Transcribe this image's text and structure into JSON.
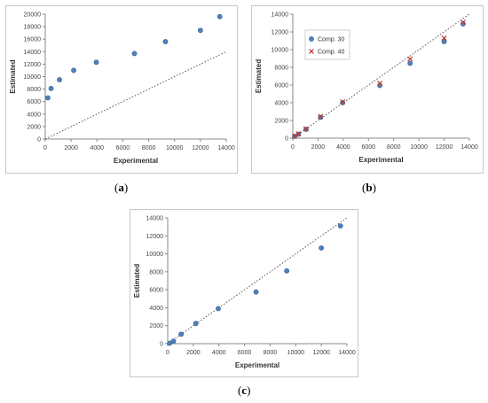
{
  "captions": {
    "a": "a",
    "b": "b",
    "c": "c"
  },
  "colors": {
    "marker": "#4f81bd",
    "marker_edge": "#2f5f94",
    "cross": "#c0392b",
    "identity_line": "#555555",
    "axis": "#888888"
  },
  "chart_data": [
    {
      "type": "scatter",
      "panel": "a",
      "xlabel": "Experimental",
      "ylabel": "Estimated",
      "xlim": [
        0,
        14000
      ],
      "ylim": [
        0,
        20000
      ],
      "xticks": [
        "0",
        "2000",
        "4000",
        "6000",
        "8000",
        "10000",
        "12000",
        "14000"
      ],
      "yticks": [
        "0",
        "2000",
        "4000",
        "6000",
        "8000",
        "10000",
        "12000",
        "14000",
        "16000",
        "18000",
        "20000"
      ],
      "grid": false,
      "identity_line": true,
      "series": [
        {
          "marker": "circle",
          "points": [
            [
              200,
              6600
            ],
            [
              450,
              8100
            ],
            [
              1100,
              9500
            ],
            [
              2200,
              11000
            ],
            [
              3950,
              12300
            ],
            [
              6900,
              13700
            ],
            [
              9300,
              15600
            ],
            [
              12000,
              17400
            ],
            [
              13500,
              19600
            ]
          ]
        }
      ]
    },
    {
      "type": "scatter",
      "panel": "b",
      "xlabel": "Experimental",
      "ylabel": "Estimated",
      "xlim": [
        0,
        14000
      ],
      "ylim": [
        0,
        14000
      ],
      "xticks": [
        "0",
        "2000",
        "4000",
        "6000",
        "8000",
        "10000",
        "12000",
        "14000"
      ],
      "yticks": [
        "0",
        "2000",
        "4000",
        "6000",
        "8000",
        "10000",
        "12000",
        "14000"
      ],
      "grid": false,
      "identity_line": true,
      "legend": "top-left",
      "series": [
        {
          "name": "Comp. 30",
          "marker": "circle",
          "points": [
            [
              150,
              200
            ],
            [
              450,
              450
            ],
            [
              1050,
              1000
            ],
            [
              2200,
              2350
            ],
            [
              3950,
              4000
            ],
            [
              6900,
              5950
            ],
            [
              9300,
              8450
            ],
            [
              12000,
              10900
            ],
            [
              13500,
              12900
            ]
          ]
        },
        {
          "name": "Comp. 40",
          "marker": "x",
          "points": [
            [
              150,
              250
            ],
            [
              450,
              500
            ],
            [
              1050,
              1050
            ],
            [
              2200,
              2450
            ],
            [
              3950,
              4100
            ],
            [
              6900,
              6200
            ],
            [
              9300,
              8950
            ],
            [
              12000,
              11300
            ],
            [
              13500,
              13100
            ]
          ]
        }
      ]
    },
    {
      "type": "scatter",
      "panel": "c",
      "xlabel": "Experimental",
      "ylabel": "Estimated",
      "xlim": [
        0,
        14000
      ],
      "ylim": [
        0,
        14000
      ],
      "xticks": [
        "0",
        "2000",
        "4000",
        "6000",
        "8000",
        "10000",
        "12000",
        "14000"
      ],
      "yticks": [
        "0",
        "2000",
        "4000",
        "6000",
        "8000",
        "10000",
        "12000",
        "14000"
      ],
      "grid": false,
      "identity_line": true,
      "series": [
        {
          "marker": "circle",
          "points": [
            [
              150,
              50
            ],
            [
              450,
              280
            ],
            [
              1050,
              1050
            ],
            [
              2200,
              2250
            ],
            [
              3950,
              3900
            ],
            [
              6900,
              5750
            ],
            [
              9300,
              8100
            ],
            [
              12000,
              10650
            ],
            [
              13500,
              13100
            ]
          ]
        }
      ]
    }
  ]
}
